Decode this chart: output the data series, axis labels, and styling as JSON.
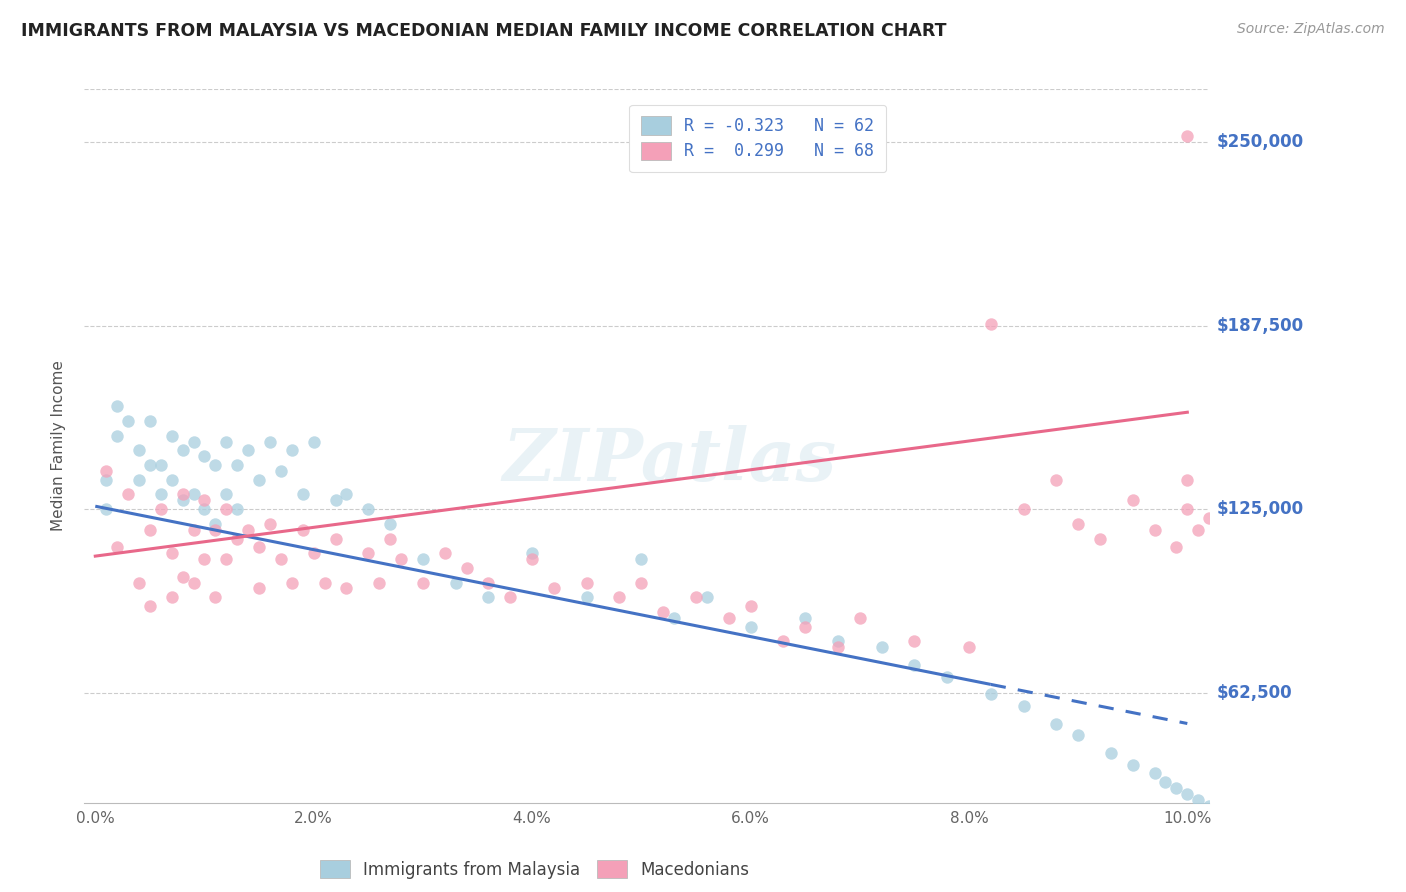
{
  "title": "IMMIGRANTS FROM MALAYSIA VS MACEDONIAN MEDIAN FAMILY INCOME CORRELATION CHART",
  "source_text": "Source: ZipAtlas.com",
  "ylabel": "Median Family Income",
  "xlim": [
    -0.001,
    0.102
  ],
  "ylim": [
    25000,
    268000
  ],
  "xtick_labels": [
    "0.0%",
    "2.0%",
    "4.0%",
    "6.0%",
    "8.0%",
    "10.0%"
  ],
  "xtick_positions": [
    0.0,
    0.02,
    0.04,
    0.06,
    0.08,
    0.1
  ],
  "ytick_labels": [
    "$62,500",
    "$125,000",
    "$187,500",
    "$250,000"
  ],
  "ytick_positions": [
    62500,
    125000,
    187500,
    250000
  ],
  "watermark": "ZIPatlas",
  "legend_line1": "R = -0.323   N = 62",
  "legend_line2": "R =  0.299   N = 68",
  "color_blue_scatter": "#A8CEDE",
  "color_pink_scatter": "#F4A0B8",
  "color_blue_line": "#4472C4",
  "color_pink_line": "#E8688A",
  "trend_blue_x0": 0.0,
  "trend_blue_x1": 0.1,
  "trend_blue_y0": 126000,
  "trend_blue_y1": 52000,
  "trend_blue_solid_end_x": 0.082,
  "trend_pink_x0": 0.0,
  "trend_pink_x1": 0.1,
  "trend_pink_y0": 109000,
  "trend_pink_y1": 158000,
  "blue_x": [
    0.001,
    0.001,
    0.002,
    0.002,
    0.003,
    0.004,
    0.004,
    0.005,
    0.005,
    0.006,
    0.006,
    0.007,
    0.007,
    0.008,
    0.008,
    0.009,
    0.009,
    0.01,
    0.01,
    0.011,
    0.011,
    0.012,
    0.012,
    0.013,
    0.013,
    0.014,
    0.015,
    0.016,
    0.017,
    0.018,
    0.019,
    0.02,
    0.022,
    0.023,
    0.025,
    0.027,
    0.03,
    0.033,
    0.036,
    0.04,
    0.045,
    0.05,
    0.053,
    0.056,
    0.06,
    0.065,
    0.068,
    0.072,
    0.075,
    0.078,
    0.082,
    0.085,
    0.088,
    0.09,
    0.093,
    0.095,
    0.097,
    0.098,
    0.099,
    0.1,
    0.101,
    0.102
  ],
  "blue_y": [
    135000,
    125000,
    160000,
    150000,
    155000,
    145000,
    135000,
    155000,
    140000,
    140000,
    130000,
    150000,
    135000,
    145000,
    128000,
    148000,
    130000,
    143000,
    125000,
    140000,
    120000,
    148000,
    130000,
    140000,
    125000,
    145000,
    135000,
    148000,
    138000,
    145000,
    130000,
    148000,
    128000,
    130000,
    125000,
    120000,
    108000,
    100000,
    95000,
    110000,
    95000,
    108000,
    88000,
    95000,
    85000,
    88000,
    80000,
    78000,
    72000,
    68000,
    62000,
    58000,
    52000,
    48000,
    42000,
    38000,
    35000,
    32000,
    30000,
    28000,
    26000,
    24000
  ],
  "pink_x": [
    0.001,
    0.002,
    0.003,
    0.004,
    0.005,
    0.005,
    0.006,
    0.007,
    0.007,
    0.008,
    0.008,
    0.009,
    0.009,
    0.01,
    0.01,
    0.011,
    0.011,
    0.012,
    0.012,
    0.013,
    0.014,
    0.015,
    0.015,
    0.016,
    0.017,
    0.018,
    0.019,
    0.02,
    0.021,
    0.022,
    0.023,
    0.025,
    0.026,
    0.027,
    0.028,
    0.03,
    0.032,
    0.034,
    0.036,
    0.038,
    0.04,
    0.042,
    0.045,
    0.048,
    0.05,
    0.052,
    0.055,
    0.058,
    0.06,
    0.063,
    0.065,
    0.068,
    0.07,
    0.075,
    0.08,
    0.082,
    0.085,
    0.088,
    0.09,
    0.092,
    0.095,
    0.097,
    0.099,
    0.1,
    0.1,
    0.1,
    0.101,
    0.102
  ],
  "pink_y": [
    138000,
    112000,
    130000,
    100000,
    118000,
    92000,
    125000,
    110000,
    95000,
    130000,
    102000,
    118000,
    100000,
    128000,
    108000,
    118000,
    95000,
    125000,
    108000,
    115000,
    118000,
    112000,
    98000,
    120000,
    108000,
    100000,
    118000,
    110000,
    100000,
    115000,
    98000,
    110000,
    100000,
    115000,
    108000,
    100000,
    110000,
    105000,
    100000,
    95000,
    108000,
    98000,
    100000,
    95000,
    100000,
    90000,
    95000,
    88000,
    92000,
    80000,
    85000,
    78000,
    88000,
    80000,
    78000,
    188000,
    125000,
    135000,
    120000,
    115000,
    128000,
    118000,
    112000,
    252000,
    135000,
    125000,
    118000,
    122000
  ]
}
